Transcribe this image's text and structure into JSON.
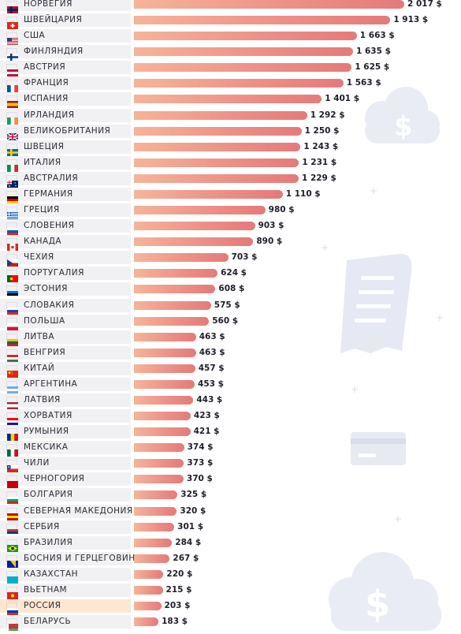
{
  "colors": {
    "bar_start": "#f6b49a",
    "bar_end": "#e47a7a",
    "row_bg": "#f1f1f3",
    "highlight_bg": "#fde7d2",
    "decor": "#e6e9f3"
  },
  "decor_icons": [
    "cloud-dollar-icon",
    "receipt-icon",
    "credit-card-icon",
    "cloud-dollar-icon"
  ],
  "chart_data": {
    "type": "bar",
    "orientation": "horizontal",
    "title": "",
    "xlabel": "",
    "ylabel": "",
    "xlim": [
      0,
      2017
    ],
    "grid": false,
    "unit": "$",
    "highlight": "РОССИЯ",
    "categories": [
      "НОРВЕГИЯ",
      "ШВЕЙЦАРИЯ",
      "США",
      "ФИНЛЯНДИЯ",
      "АВСТРИЯ",
      "ФРАНЦИЯ",
      "ИСПАНИЯ",
      "ИРЛАНДИЯ",
      "ВЕЛИКОБРИТАНИЯ",
      "ШВЕЦИЯ",
      "ИТАЛИЯ",
      "АВСТРАЛИЯ",
      "ГЕРМАНИЯ",
      "ГРЕЦИЯ",
      "СЛОВЕНИЯ",
      "КАНАДА",
      "ЧЕХИЯ",
      "ПОРТУГАЛИЯ",
      "ЭСТОНИЯ",
      "СЛОВАКИЯ",
      "ПОЛЬША",
      "ЛИТВА",
      "ВЕНГРИЯ",
      "КИТАЙ",
      "АРГЕНТИНА",
      "ЛАТВИЯ",
      "ХОРВАТИЯ",
      "РУМЫНИЯ",
      "МЕКСИКА",
      "ЧИЛИ",
      "ЧЕРНОГОРИЯ",
      "БОЛГАРИЯ",
      "СЕВЕРНАЯ МАКЕДОНИЯ",
      "СЕРБИЯ",
      "БРАЗИЛИЯ",
      "БОСНИЯ И ГЕРЦЕГОВИНА",
      "КАЗАХСТАН",
      "ВЬЕТНАМ",
      "РОССИЯ",
      "БЕЛАРУСЬ"
    ],
    "values": [
      2017,
      1913,
      1663,
      1635,
      1625,
      1563,
      1401,
      1292,
      1250,
      1243,
      1231,
      1229,
      1110,
      980,
      903,
      890,
      703,
      624,
      608,
      575,
      560,
      463,
      463,
      457,
      453,
      443,
      423,
      421,
      374,
      373,
      370,
      325,
      320,
      301,
      284,
      267,
      220,
      215,
      203,
      183
    ],
    "value_labels": [
      "2 017 $",
      "1 913 $",
      "1 663 $",
      "1 635 $",
      "1 625 $",
      "1 563 $",
      "1 401 $",
      "1 292 $",
      "1 250 $",
      "1 243 $",
      "1 231 $",
      "1 229 $",
      "1 110 $",
      "980 $",
      "903 $",
      "890 $",
      "703 $",
      "624 $",
      "608 $",
      "575 $",
      "560 $",
      "463 $",
      "463 $",
      "457 $",
      "453 $",
      "443 $",
      "423 $",
      "421 $",
      "374 $",
      "373 $",
      "370 $",
      "325 $",
      "320 $",
      "301 $",
      "284 $",
      "267 $",
      "220 $",
      "215 $",
      "203 $",
      "183 $"
    ],
    "flags": [
      {
        "type": "cross",
        "c": [
          "#ba0c2f",
          "#ffffff",
          "#00205b"
        ]
      },
      {
        "type": "swiss",
        "c": [
          "#da291c",
          "#ffffff"
        ]
      },
      {
        "type": "usa",
        "c": [
          "#b22234",
          "#ffffff",
          "#3c3b6e"
        ]
      },
      {
        "type": "cross",
        "c": [
          "#ffffff",
          "#ffffff",
          "#003580"
        ]
      },
      {
        "type": "h",
        "c": [
          "#c8102e",
          "#ffffff",
          "#c8102e"
        ]
      },
      {
        "type": "v",
        "c": [
          "#0055a4",
          "#ffffff",
          "#ef4135"
        ]
      },
      {
        "type": "h3w",
        "c": [
          "#aa151b",
          "#f1bf00",
          "#aa151b"
        ]
      },
      {
        "type": "v",
        "c": [
          "#169b62",
          "#ffffff",
          "#ff883e"
        ]
      },
      {
        "type": "uk",
        "c": [
          "#012169",
          "#ffffff",
          "#c8102e"
        ]
      },
      {
        "type": "cross",
        "c": [
          "#006aa7",
          "#fecc00",
          "#fecc00"
        ]
      },
      {
        "type": "v",
        "c": [
          "#009246",
          "#ffffff",
          "#ce2b37"
        ]
      },
      {
        "type": "aus",
        "c": [
          "#012169",
          "#ffffff",
          "#c8102e"
        ]
      },
      {
        "type": "h",
        "c": [
          "#000000",
          "#dd0000",
          "#ffce00"
        ]
      },
      {
        "type": "greece",
        "c": [
          "#0d5eaf",
          "#ffffff"
        ]
      },
      {
        "type": "h",
        "c": [
          "#ffffff",
          "#005da4",
          "#ed1c24"
        ]
      },
      {
        "type": "canada",
        "c": [
          "#d52b1e",
          "#ffffff"
        ]
      },
      {
        "type": "czech",
        "c": [
          "#ffffff",
          "#d7141a",
          "#11457e"
        ]
      },
      {
        "type": "v2",
        "c": [
          "#006600",
          "#ff0000"
        ]
      },
      {
        "type": "h",
        "c": [
          "#0072ce",
          "#000000",
          "#ffffff"
        ]
      },
      {
        "type": "h",
        "c": [
          "#ffffff",
          "#0b4ea2",
          "#ee1c25"
        ]
      },
      {
        "type": "h2",
        "c": [
          "#ffffff",
          "#dc143c"
        ]
      },
      {
        "type": "h",
        "c": [
          "#fdb913",
          "#006a44",
          "#c1272d"
        ]
      },
      {
        "type": "h",
        "c": [
          "#ce2939",
          "#ffffff",
          "#477050"
        ]
      },
      {
        "type": "china",
        "c": [
          "#de2910",
          "#ffde00"
        ]
      },
      {
        "type": "h",
        "c": [
          "#74acdf",
          "#ffffff",
          "#74acdf"
        ]
      },
      {
        "type": "h3w",
        "c": [
          "#9e3039",
          "#ffffff",
          "#9e3039"
        ]
      },
      {
        "type": "h",
        "c": [
          "#ff0000",
          "#ffffff",
          "#171796"
        ]
      },
      {
        "type": "v",
        "c": [
          "#002b7f",
          "#fcd116",
          "#ce1126"
        ]
      },
      {
        "type": "v",
        "c": [
          "#006847",
          "#ffffff",
          "#ce1126"
        ]
      },
      {
        "type": "chile",
        "c": [
          "#ffffff",
          "#d52b1e",
          "#0039a6"
        ]
      },
      {
        "type": "h",
        "c": [
          "#c40308",
          "#c40308",
          "#c40308"
        ]
      },
      {
        "type": "h",
        "c": [
          "#ffffff",
          "#00966e",
          "#d62612"
        ]
      },
      {
        "type": "h",
        "c": [
          "#d20000",
          "#ffe600",
          "#d20000"
        ]
      },
      {
        "type": "h",
        "c": [
          "#c6363c",
          "#0c4076",
          "#ffffff"
        ]
      },
      {
        "type": "brazil",
        "c": [
          "#009c3b",
          "#ffdf00",
          "#002776"
        ]
      },
      {
        "type": "bosnia",
        "c": [
          "#002395",
          "#fecb00"
        ]
      },
      {
        "type": "h",
        "c": [
          "#00afca",
          "#00afca",
          "#00afca"
        ]
      },
      {
        "type": "vietnam",
        "c": [
          "#da251d",
          "#ffff00"
        ]
      },
      {
        "type": "h",
        "c": [
          "#ffffff",
          "#0039a6",
          "#d52b1e"
        ]
      },
      {
        "type": "h2w",
        "c": [
          "#c8313e",
          "#4aa657"
        ]
      }
    ]
  }
}
